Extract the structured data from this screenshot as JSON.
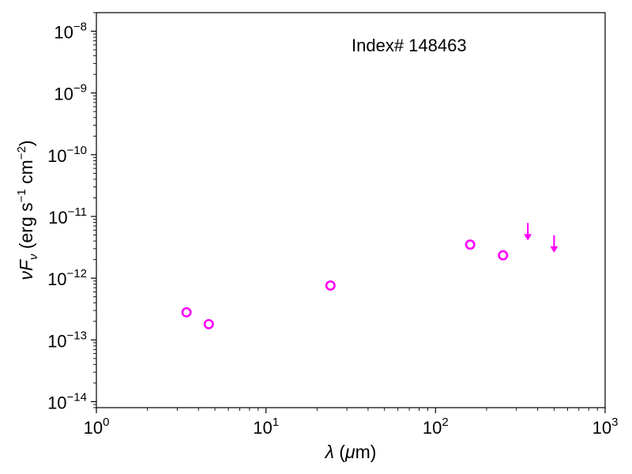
{
  "chart_data": {
    "type": "scatter",
    "xscale": "log",
    "yscale": "log",
    "xlim": [
      1,
      1000
    ],
    "ylim": [
      8e-15,
      2e-08
    ],
    "xlabel": "λ (μm)",
    "ylabel": "νFν (erg s⁻¹ cm⁻²)",
    "x_ticks": [
      {
        "value": 1,
        "base": "10",
        "exp": "0"
      },
      {
        "value": 10,
        "base": "10",
        "exp": "1"
      },
      {
        "value": 100,
        "base": "10",
        "exp": "2"
      },
      {
        "value": 1000,
        "base": "10",
        "exp": "3"
      }
    ],
    "y_ticks": [
      {
        "value": 1e-14,
        "base": "10",
        "exp": "−14"
      },
      {
        "value": 1e-13,
        "base": "10",
        "exp": "−13"
      },
      {
        "value": 1e-12,
        "base": "10",
        "exp": "−12"
      },
      {
        "value": 1e-11,
        "base": "10",
        "exp": "−11"
      },
      {
        "value": 1e-10,
        "base": "10",
        "exp": "−10"
      },
      {
        "value": 1e-09,
        "base": "10",
        "exp": "−9"
      },
      {
        "value": 1e-08,
        "base": "10",
        "exp": "−8"
      }
    ],
    "annotation": "Index# 148463",
    "marker_color": "#ff00ff",
    "detections": [
      {
        "x": 3.4,
        "y": 2.8e-13
      },
      {
        "x": 4.6,
        "y": 1.8e-13
      },
      {
        "x": 24,
        "y": 7.6e-13
      },
      {
        "x": 160,
        "y": 3.5e-12
      },
      {
        "x": 250,
        "y": 2.35e-12
      }
    ],
    "upper_limits": [
      {
        "x": 350,
        "y": 6e-12
      },
      {
        "x": 500,
        "y": 3.8e-12
      }
    ]
  }
}
